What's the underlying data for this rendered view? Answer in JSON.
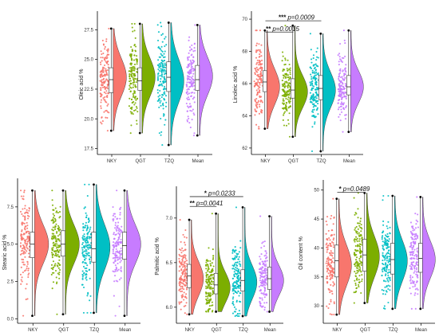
{
  "colors": {
    "NKY": "#F8766D",
    "QGT": "#7CAE00",
    "TZQ": "#00BFC4",
    "Mean": "#C77CFF"
  },
  "chart_data": [
    {
      "type": "raincloud",
      "id": "oleic",
      "ylabel": "Oleic acid %",
      "ylim": [
        17.0,
        28.8
      ],
      "yticks": [
        17.5,
        20.0,
        22.5,
        25.0,
        27.5
      ],
      "tick_labels": [
        "17.5",
        "20.0",
        "22.5",
        "25.0",
        "27.5"
      ],
      "categories": [
        "NKY",
        "QGT",
        "TZQ",
        "Mean"
      ],
      "series": [
        {
          "name": "NKY",
          "min": 19.0,
          "q1": 22.2,
          "median": 23.3,
          "q3": 24.3,
          "max": 27.6,
          "mode": 23.5,
          "spread": 1.6
        },
        {
          "name": "QGT",
          "min": 18.8,
          "q1": 22.4,
          "median": 23.2,
          "q3": 24.3,
          "max": 28.0,
          "mode": 23.5,
          "spread": 1.6
        },
        {
          "name": "TZQ",
          "min": 17.8,
          "q1": 22.3,
          "median": 23.5,
          "q3": 24.8,
          "max": 28.1,
          "mode": 23.2,
          "spread": 1.8
        },
        {
          "name": "Mean",
          "min": 18.6,
          "q1": 22.4,
          "median": 23.3,
          "q3": 24.5,
          "max": 27.9,
          "mode": 23.6,
          "spread": 1.6
        }
      ],
      "annotations": []
    },
    {
      "type": "raincloud",
      "id": "linoleic",
      "ylabel": "Linoleic acid %",
      "ylim": [
        61.6,
        70.3
      ],
      "yticks": [
        62,
        64,
        66,
        68,
        70
      ],
      "tick_labels": [
        "62",
        "64",
        "66",
        "68",
        "70"
      ],
      "categories": [
        "NKY",
        "QGT",
        "TZQ",
        "Mean"
      ],
      "series": [
        {
          "name": "NKY",
          "min": 63.2,
          "q1": 65.5,
          "median": 66.1,
          "q3": 66.8,
          "max": 69.3,
          "mode": 65.8,
          "spread": 1.1
        },
        {
          "name": "QGT",
          "min": 62.7,
          "q1": 65.1,
          "median": 65.6,
          "q3": 66.3,
          "max": 69.6,
          "mode": 65.5,
          "spread": 1.0
        },
        {
          "name": "TZQ",
          "min": 61.8,
          "q1": 65.0,
          "median": 65.7,
          "q3": 66.5,
          "max": 69.1,
          "mode": 65.6,
          "spread": 1.1
        },
        {
          "name": "Mean",
          "min": 63.0,
          "q1": 65.3,
          "median": 65.8,
          "q3": 66.5,
          "max": 69.3,
          "mode": 65.8,
          "spread": 1.0
        }
      ],
      "annotations": [
        {
          "from": "NKY",
          "to": "TZQ",
          "y": 69.9,
          "stars": "***",
          "label": "p=0.0009"
        },
        {
          "from": "NKY",
          "to": "QGT",
          "y": 69.2,
          "stars": "**",
          "label": "p=0.0015"
        }
      ]
    },
    {
      "type": "raincloud",
      "id": "stearic",
      "ylabel": "Stearic acid %",
      "ylim": [
        -0.3,
        9.2
      ],
      "yticks": [
        0.0,
        2.5,
        5.0,
        7.5
      ],
      "tick_labels": [
        "0.0",
        "2.5",
        "5.0",
        "7.5"
      ],
      "categories": [
        "NKY",
        "QGT",
        "TZQ",
        "Mean"
      ],
      "series": [
        {
          "name": "NKY",
          "min": 0.2,
          "q1": 4.1,
          "median": 5.0,
          "q3": 5.8,
          "max": 8.6,
          "mode": 5.0,
          "spread": 1.3
        },
        {
          "name": "QGT",
          "min": 0.3,
          "q1": 4.2,
          "median": 5.0,
          "q3": 5.9,
          "max": 8.6,
          "mode": 5.0,
          "spread": 1.3
        },
        {
          "name": "TZQ",
          "min": 0.4,
          "q1": 3.8,
          "median": 4.7,
          "q3": 5.8,
          "max": 9.0,
          "mode": 4.8,
          "spread": 1.5
        },
        {
          "name": "Mean",
          "min": 0.2,
          "q1": 4.0,
          "median": 4.9,
          "q3": 5.8,
          "max": 8.6,
          "mode": 5.0,
          "spread": 1.3
        }
      ],
      "annotations": []
    },
    {
      "type": "raincloud",
      "id": "palmitic",
      "ylabel": "Palmitic acid %",
      "ylim": [
        5.82,
        7.32
      ],
      "yticks": [
        6.0,
        6.5,
        7.0
      ],
      "tick_labels": [
        "6.0",
        "6.5",
        "7.0"
      ],
      "categories": [
        "NKY",
        "QGT",
        "TZQ",
        "Mean"
      ],
      "series": [
        {
          "name": "NKY",
          "min": 5.92,
          "q1": 6.22,
          "median": 6.35,
          "q3": 6.48,
          "max": 6.98,
          "mode": 6.32,
          "spread": 0.19
        },
        {
          "name": "QGT",
          "min": 5.95,
          "q1": 6.15,
          "median": 6.25,
          "q3": 6.38,
          "max": 7.05,
          "mode": 6.22,
          "spread": 0.17
        },
        {
          "name": "TZQ",
          "min": 5.9,
          "q1": 6.18,
          "median": 6.3,
          "q3": 6.42,
          "max": 7.12,
          "mode": 6.28,
          "spread": 0.19
        },
        {
          "name": "Mean",
          "min": 5.95,
          "q1": 6.2,
          "median": 6.32,
          "q3": 6.45,
          "max": 7.02,
          "mode": 6.3,
          "spread": 0.17
        }
      ],
      "annotations": [
        {
          "from": "NKY",
          "to": "TZQ",
          "y": 7.24,
          "stars": "*",
          "label": "p=0.0233"
        },
        {
          "from": "NKY",
          "to": "QGT",
          "y": 7.13,
          "stars": "**",
          "label": "p=0.0041"
        }
      ]
    },
    {
      "type": "raincloud",
      "id": "oil",
      "ylabel": "Oil content %",
      "ylim": [
        27.0,
        51.2
      ],
      "yticks": [
        30,
        35,
        40,
        45,
        50
      ],
      "tick_labels": [
        "30",
        "35",
        "40",
        "45",
        "50"
      ],
      "categories": [
        "NKY",
        "QGT",
        "TZQ",
        "Mean"
      ],
      "series": [
        {
          "name": "NKY",
          "min": 28.5,
          "q1": 35.0,
          "median": 37.8,
          "q3": 40.5,
          "max": 48.5,
          "mode": 37.0,
          "spread": 3.5
        },
        {
          "name": "QGT",
          "min": 30.5,
          "q1": 36.0,
          "median": 38.8,
          "q3": 41.5,
          "max": 49.5,
          "mode": 38.5,
          "spread": 3.5
        },
        {
          "name": "TZQ",
          "min": 29.5,
          "q1": 35.5,
          "median": 38.0,
          "q3": 40.8,
          "max": 49.0,
          "mode": 37.8,
          "spread": 3.5
        },
        {
          "name": "Mean",
          "min": 29.5,
          "q1": 35.8,
          "median": 38.2,
          "q3": 40.8,
          "max": 48.8,
          "mode": 38.0,
          "spread": 3.2
        }
      ],
      "annotations": [
        {
          "from": "NKY",
          "to": "QGT",
          "y": 49.6,
          "stars": "*",
          "label": "p=0.0489"
        }
      ]
    }
  ]
}
